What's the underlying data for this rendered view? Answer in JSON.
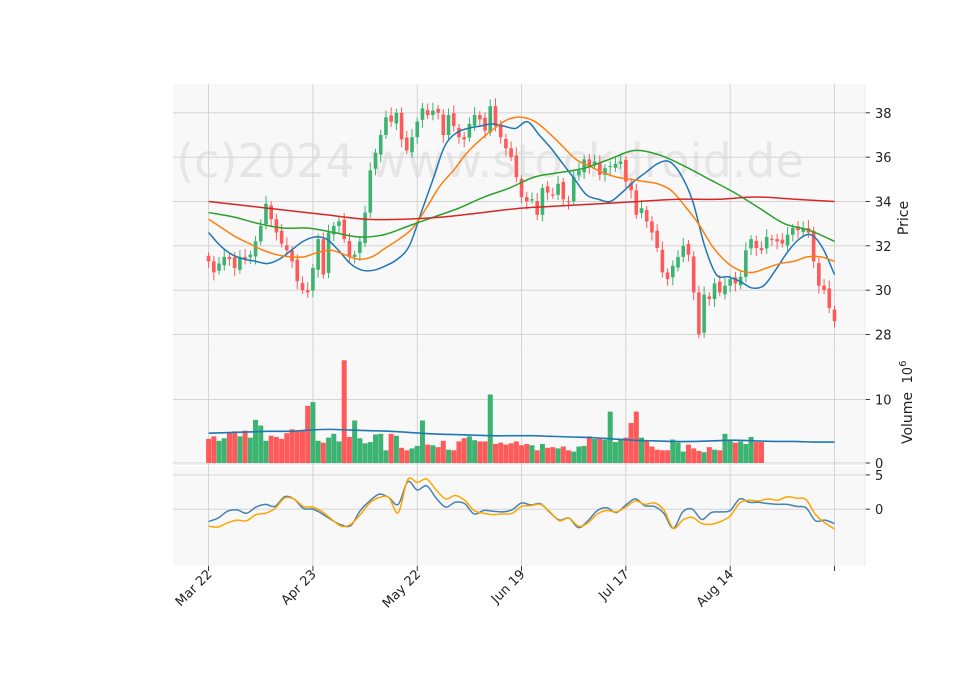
{
  "watermark": "(c)2024 www.stockdroid.de",
  "colors": {
    "up": "#3cb371",
    "down": "#ff5a5a",
    "ma_blue": "#1f77b4",
    "ma_orange": "#ff7f0e",
    "ma_green": "#2ca02c",
    "ma_red": "#d62728",
    "volume_ma": "#1f77b4",
    "indicator_line_1": "#4682b4",
    "indicator_line_2": "#ffa500",
    "panel_bg": "#f8f8f8",
    "grid": "#d0d0d0"
  },
  "chart_data": [
    {
      "type": "candlestick",
      "panel": "price",
      "ylabel": "Price",
      "ylim": [
        27.3,
        39.3
      ],
      "yticks": [
        28,
        30,
        32,
        34,
        36,
        38
      ],
      "grid": true,
      "x_tick_labels": [
        "Mar 22",
        "Apr 23",
        "May 22",
        "Jun 19",
        "Jul 17",
        "Aug 14",
        ""
      ],
      "x_tick_index": [
        0,
        20,
        40,
        60,
        80,
        100,
        120
      ],
      "bar_count": 121,
      "closes": [
        31.3,
        30.8,
        31.2,
        31.5,
        31.4,
        31.0,
        31.5,
        31.4,
        31.6,
        32.2,
        32.9,
        33.9,
        33.2,
        32.6,
        32.1,
        31.8,
        31.3,
        30.4,
        30.0,
        29.9,
        31.0,
        32.3,
        30.7,
        32.6,
        32.9,
        33.1,
        32.3,
        31.5,
        31.6,
        32.2,
        33.5,
        35.4,
        36.2,
        37.0,
        37.8,
        37.6,
        38.0,
        36.8,
        36.3,
        36.9,
        37.6,
        38.2,
        37.9,
        38.1,
        38.0,
        37.0,
        37.9,
        37.4,
        36.9,
        36.8,
        37.5,
        37.9,
        37.7,
        37.2,
        38.3,
        37.4,
        36.9,
        36.4,
        36.0,
        35.1,
        34.2,
        34.0,
        34.1,
        33.4,
        34.6,
        34.4,
        34.3,
        34.8,
        34.1,
        34.0,
        35.1,
        35.4,
        35.9,
        35.6,
        35.8,
        35.2,
        35.5,
        35.6,
        35.7,
        35.8,
        34.9,
        34.5,
        33.4,
        33.7,
        33.1,
        32.6,
        31.9,
        30.8,
        30.5,
        31.1,
        31.5,
        32.0,
        31.6,
        29.9,
        28.0,
        29.8,
        29.6,
        30.3,
        29.9,
        30.2,
        30.5,
        30.3,
        30.6,
        31.8,
        32.3,
        31.9,
        31.8,
        32.4,
        32.3,
        32.2,
        32.1,
        32.5,
        32.8,
        32.7,
        32.8,
        32.6,
        31.3,
        30.2,
        30.0,
        29.2,
        28.6
      ],
      "series": [
        {
          "name": "",
          "color": "#1f77b4",
          "values": [
            32.6,
            32.0,
            31.6,
            31.4,
            31.3,
            31.2,
            31.4,
            31.8,
            32.2,
            32.4,
            32.3,
            31.8,
            31.2,
            30.9,
            30.9,
            31.1,
            31.4,
            32.0,
            33.5,
            35.0,
            36.5,
            37.1,
            37.3,
            37.4,
            37.5,
            37.4,
            37.3,
            37.6,
            37.0,
            36.4,
            35.7,
            35.0,
            34.3,
            34.1,
            34.0,
            34.4,
            34.9,
            35.3,
            35.7,
            35.8,
            35.2,
            34.0,
            32.0,
            30.7,
            30.6,
            30.4,
            30.1,
            30.2,
            30.9,
            31.7,
            32.3,
            32.5,
            31.9,
            30.7
          ]
        },
        {
          "name": "",
          "color": "#ff7f0e",
          "values": [
            33.2,
            32.8,
            32.4,
            32.1,
            31.8,
            31.6,
            31.5,
            31.5,
            31.7,
            31.8,
            31.6,
            31.4,
            31.5,
            31.9,
            32.3,
            32.8,
            33.7,
            34.7,
            35.4,
            36.2,
            36.8,
            37.3,
            37.7,
            37.8,
            37.6,
            37.1,
            36.5,
            35.9,
            35.6,
            35.3,
            35.1,
            35.0,
            34.9,
            34.8,
            34.5,
            33.8,
            33.0,
            32.0,
            31.3,
            30.9,
            30.8,
            31.0,
            31.2,
            31.3,
            31.5,
            31.5,
            31.3
          ]
        },
        {
          "name": "",
          "color": "#2ca02c",
          "values": [
            33.5,
            33.3,
            33.0,
            32.8,
            32.8,
            32.6,
            32.4,
            32.5,
            32.9,
            33.3,
            33.7,
            34.2,
            34.6,
            35.1,
            35.3,
            35.5,
            35.9,
            36.3,
            36.1,
            35.6,
            35.0,
            34.4,
            33.7,
            33.0,
            32.7,
            32.2
          ]
        },
        {
          "name": "",
          "color": "#d62728",
          "values": [
            34.0,
            33.8,
            33.6,
            33.4,
            33.2,
            33.2,
            33.3,
            33.5,
            33.7,
            33.8,
            33.9,
            34.0,
            34.1,
            34.1,
            34.2,
            34.1,
            34.0
          ]
        }
      ]
    },
    {
      "type": "bar",
      "panel": "volume",
      "ylabel": "Volume",
      "yscale_label": "10^6",
      "ylim": [
        0,
        17.5
      ],
      "yticks": [
        0,
        10
      ],
      "values": [
        3.8,
        4.2,
        3.5,
        3.9,
        4.8,
        5.0,
        4.2,
        5.1,
        4.0,
        6.8,
        5.9,
        3.5,
        4.3,
        4.1,
        3.8,
        4.7,
        5.3,
        5.0,
        5.1,
        9.0,
        9.6,
        3.5,
        3.2,
        4.0,
        4.6,
        3.4,
        16.2,
        4.1,
        6.7,
        3.9,
        3.1,
        3.3,
        4.5,
        4.6,
        2.0,
        4.6,
        4.3,
        2.4,
        2.0,
        2.3,
        2.7,
        6.7,
        2.9,
        2.8,
        2.5,
        3.5,
        2.1,
        2.0,
        3.4,
        3.9,
        4.2,
        3.6,
        3.4,
        3.4,
        10.8,
        3.0,
        3.2,
        2.9,
        3.1,
        3.4,
        2.8,
        3.0,
        2.8,
        2.0,
        3.0,
        2.4,
        2.5,
        2.3,
        2.6,
        2.0,
        1.8,
        2.6,
        2.7,
        4.2,
        3.8,
        3.9,
        3.7,
        8.1,
        3.3,
        3.7,
        4.0,
        6.3,
        8.1,
        4.0,
        3.6,
        2.6,
        2.1,
        2.0,
        2.0,
        3.7,
        3.2,
        1.8,
        2.9,
        2.3,
        1.9,
        1.7,
        2.5,
        2.1,
        2.0,
        4.6,
        3.7,
        3.2,
        3.4,
        3.0,
        4.1,
        3.3,
        3.3
      ],
      "ma": [
        4.7,
        4.8,
        4.9,
        5.0,
        5.0,
        5.2,
        5.3,
        5.2,
        5.1,
        5.0,
        4.8,
        4.6,
        4.5,
        4.4,
        4.3,
        4.3,
        4.3,
        4.2,
        4.1,
        4.0,
        3.8,
        3.6,
        3.5,
        3.4,
        3.4,
        3.5,
        3.6,
        3.5,
        3.4,
        3.4,
        3.3,
        3.3
      ]
    },
    {
      "type": "line",
      "panel": "indicator",
      "ylim": [
        -8.3,
        6.3
      ],
      "yticks": [
        0,
        5
      ],
      "grid": true,
      "series": [
        {
          "name": "",
          "color": "#4682b4",
          "values": [
            -1.8,
            -1.3,
            -0.3,
            -0.1,
            -0.6,
            0.3,
            0.7,
            0.4,
            1.8,
            1.5,
            0.1,
            0.0,
            -0.7,
            -1.6,
            -2.3,
            -2.4,
            -0.2,
            1.2,
            2.2,
            1.7,
            0.7,
            4.0,
            2.8,
            3.4,
            1.6,
            0.3,
            1.0,
            0.8,
            -0.7,
            -0.2,
            -0.3,
            -0.4,
            -0.1,
            0.9,
            0.6,
            0.8,
            -0.5,
            -1.6,
            -1.3,
            -2.7,
            -1.7,
            -0.2,
            0.2,
            -0.5,
            0.6,
            1.5,
            0.5,
            0.4,
            -0.6,
            -2.8,
            -0.4,
            0.0,
            -1.5,
            -0.5,
            -0.4,
            -0.2,
            1.5,
            1.0,
            1.0,
            0.8,
            0.7,
            0.7,
            0.4,
            0.2,
            -1.7,
            -1.6,
            -2.1
          ]
        },
        {
          "name": "",
          "color": "#ffa500",
          "values": [
            -2.5,
            -2.6,
            -2.0,
            -1.6,
            -1.7,
            -0.8,
            -0.6,
            0.1,
            1.6,
            1.5,
            0.4,
            0.3,
            -0.4,
            -1.5,
            -2.5,
            -2.2,
            -0.8,
            0.9,
            1.7,
            1.7,
            -0.5,
            4.3,
            3.9,
            4.4,
            2.8,
            1.5,
            2.0,
            1.3,
            -0.2,
            -0.6,
            -0.8,
            -0.7,
            -0.6,
            0.4,
            0.5,
            0.7,
            -0.4,
            -1.7,
            -1.3,
            -2.5,
            -2.0,
            -0.7,
            -0.2,
            -0.4,
            0.3,
            1.2,
            0.7,
            0.9,
            -0.1,
            -2.8,
            -1.6,
            -1.2,
            -2.1,
            -2.2,
            -1.8,
            -1.0,
            0.9,
            1.3,
            1.2,
            1.5,
            1.3,
            1.8,
            1.6,
            1.4,
            -0.8,
            -2.0,
            -2.9
          ]
        }
      ]
    }
  ]
}
